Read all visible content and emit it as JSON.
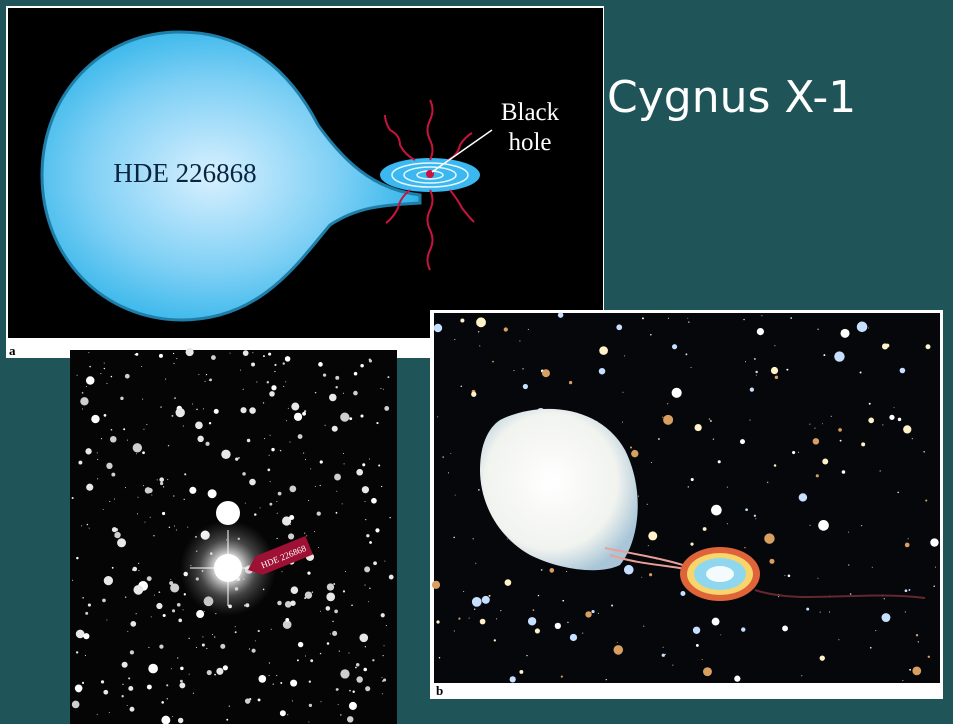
{
  "title": "Cygnus X-1",
  "figure_a": {
    "label": "a",
    "star_label": "HDE 226868",
    "black_hole_label": [
      "Black",
      "hole"
    ]
  },
  "photo": {
    "star_label": "HDE 226868"
  },
  "figure_b": {
    "label": "b"
  }
}
